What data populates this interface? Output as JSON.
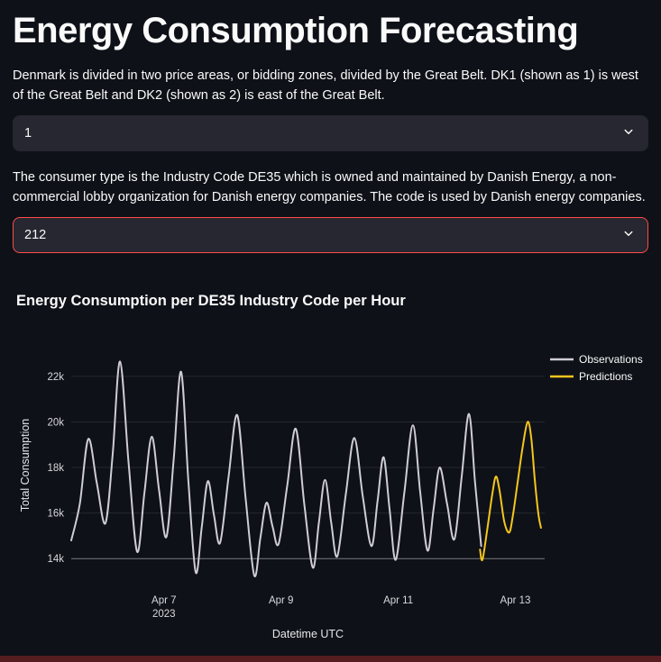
{
  "theme": {
    "background": "#0e1117",
    "text": "#fafafa",
    "input_background": "#262730",
    "accent_red": "#ff4b4b",
    "bottom_bar_color": "#551d1f"
  },
  "header": {
    "title": "Energy Consumption Forecasting",
    "intro_bidding_zones": "Denmark is divided in two price areas, or bidding zones, divided by the Great Belt. DK1 (shown as 1) is west of the Great Belt and DK2 (shown as 2) is east of the Great Belt.",
    "intro_consumer_type": "The consumer type is the Industry Code DE35 which is owned and maintained by Danish Energy, a non-commercial lobby organization for Danish energy companies. The code is used by Danish energy companies."
  },
  "selects": {
    "price_area": {
      "value": "1"
    },
    "consumer_type": {
      "value": "212"
    }
  },
  "chart_data": {
    "type": "line",
    "title": "Energy Consumption per DE35 Industry Code per Hour",
    "xlabel": "Datetime UTC",
    "ylabel": "Total Consumption",
    "x_unit": "hours since 2023-04-05 00:00 UTC",
    "xlim_hours": [
      10,
      204
    ],
    "ylim_thousands": [
      12.9,
      23.3
    ],
    "grid": "horizontal-only",
    "y_ticks": [
      {
        "value": 14,
        "label": "14k"
      },
      {
        "value": 16,
        "label": "16k"
      },
      {
        "value": 18,
        "label": "18k"
      },
      {
        "value": 20,
        "label": "20k"
      },
      {
        "value": 22,
        "label": "22k"
      }
    ],
    "x_ticks": [
      {
        "hour": 48,
        "label": "Apr 7",
        "sublabel": "2023"
      },
      {
        "hour": 96,
        "label": "Apr 9",
        "sublabel": ""
      },
      {
        "hour": 144,
        "label": "Apr 11",
        "sublabel": ""
      },
      {
        "hour": 192,
        "label": "Apr 13",
        "sublabel": ""
      }
    ],
    "legend": {
      "position": "top-right"
    },
    "series": [
      {
        "name": "Observations",
        "color": "#cfccd6",
        "points_hour_thousands": [
          [
            10,
            14.8
          ],
          [
            13.5,
            16.4
          ],
          [
            17,
            19.25
          ],
          [
            20.5,
            17.3
          ],
          [
            24,
            15.55
          ],
          [
            27,
            18.6
          ],
          [
            30,
            22.65
          ],
          [
            33.5,
            18.2
          ],
          [
            37,
            14.3
          ],
          [
            40,
            16.9
          ],
          [
            43,
            19.35
          ],
          [
            46,
            17.0
          ],
          [
            49,
            14.95
          ],
          [
            52,
            18.4
          ],
          [
            55,
            22.2
          ],
          [
            58,
            17.4
          ],
          [
            61,
            13.4
          ],
          [
            63.5,
            15.4
          ],
          [
            66,
            17.4
          ],
          [
            68.5,
            15.9
          ],
          [
            71,
            14.7
          ],
          [
            74.5,
            17.6
          ],
          [
            78,
            20.3
          ],
          [
            81.5,
            16.6
          ],
          [
            85,
            13.25
          ],
          [
            87.5,
            14.9
          ],
          [
            90,
            16.45
          ],
          [
            92.5,
            15.4
          ],
          [
            95,
            14.65
          ],
          [
            98.5,
            17.2
          ],
          [
            102,
            19.7
          ],
          [
            105.5,
            16.4
          ],
          [
            109,
            13.6
          ],
          [
            111.5,
            15.6
          ],
          [
            114,
            17.45
          ],
          [
            116.5,
            15.6
          ],
          [
            119,
            14.1
          ],
          [
            122.5,
            16.8
          ],
          [
            126,
            19.3
          ],
          [
            129.5,
            16.7
          ],
          [
            133,
            14.55
          ],
          [
            135.5,
            16.5
          ],
          [
            138,
            18.45
          ],
          [
            140.5,
            16.1
          ],
          [
            143,
            13.95
          ],
          [
            146.5,
            16.9
          ],
          [
            150,
            19.85
          ],
          [
            153,
            16.9
          ],
          [
            156,
            14.35
          ],
          [
            158.5,
            16.2
          ],
          [
            161,
            18.0
          ],
          [
            164,
            16.4
          ],
          [
            167,
            14.85
          ],
          [
            170,
            17.6
          ],
          [
            173,
            20.35
          ],
          [
            175.5,
            17.3
          ],
          [
            178,
            14.55
          ]
        ]
      },
      {
        "name": "Predictions",
        "color": "#f5c51d",
        "points_hour_thousands": [
          [
            177.5,
            14.4
          ],
          [
            178.5,
            13.95
          ],
          [
            180.5,
            15.3
          ],
          [
            182.5,
            16.8
          ],
          [
            184,
            17.6
          ],
          [
            185.5,
            17.0
          ],
          [
            187.5,
            15.6
          ],
          [
            189.5,
            15.15
          ],
          [
            191,
            15.9
          ],
          [
            193,
            17.4
          ],
          [
            195,
            18.9
          ],
          [
            197,
            20.0
          ],
          [
            198.5,
            19.3
          ],
          [
            200,
            17.4
          ],
          [
            201.5,
            15.9
          ],
          [
            202.5,
            15.35
          ]
        ]
      }
    ]
  }
}
